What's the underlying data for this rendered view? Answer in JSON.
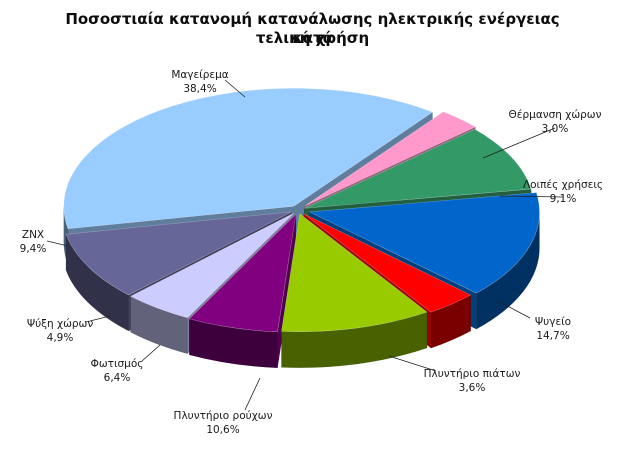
{
  "chart_data": {
    "type": "pie",
    "title": [
      "Ποσοστιαία κατανομή κατανάλωσης ηλεκτρικής ενέργειας κατά",
      "τελική χρήση"
    ],
    "slices": [
      {
        "label": "Μαγείρεμα",
        "value": 38.4,
        "value_label": "38,4%",
        "color": "#99ccff"
      },
      {
        "label": "Θέρμανση χώρων",
        "value": 3.0,
        "value_label": "3,0%",
        "color": "#ff99cc"
      },
      {
        "label": "Λοιπές χρήσεις",
        "value": 9.1,
        "value_label": "9,1%",
        "color": "#339966"
      },
      {
        "label": "Ψυγείο",
        "value": 14.7,
        "value_label": "14,7%",
        "color": "#0066cc"
      },
      {
        "label": "Πλυντήριο πιάτων",
        "value": 3.6,
        "value_label": "3,6%",
        "color": "#ff0000"
      },
      {
        "label": "Πλυντήριο ρούχων",
        "value": 10.6,
        "value_label": "10,6%",
        "color": "#99cc00"
      },
      {
        "label": "Φωτισμός",
        "value": 6.4,
        "value_label": "6,4%",
        "color": "#800080"
      },
      {
        "label": "Ψύξη χώρων",
        "value": 4.9,
        "value_label": "4,9%",
        "color": "#ccccff"
      },
      {
        "label": "ZNX",
        "value": 9.4,
        "value_label": "9,4%",
        "color": "#666699"
      }
    ],
    "legend": "none",
    "style": "3d-exploded"
  }
}
